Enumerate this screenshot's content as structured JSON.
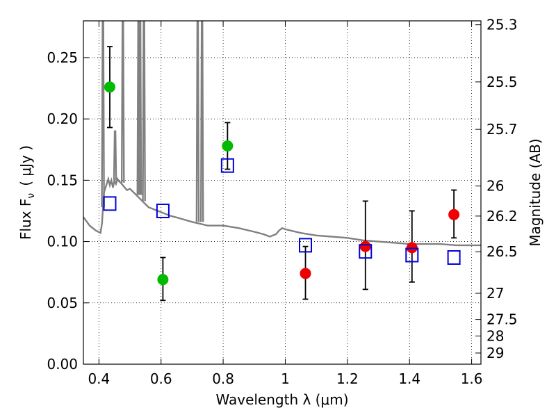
{
  "chart_data": {
    "type": "scatter",
    "xlabel": "Wavelength  λ (μm)",
    "ylabel": "Flux  F",
    "ylabel_subscript": "ν",
    "ylabel_unit": "( μJy )",
    "y2label": "Magnitude (AB)",
    "xlim": [
      0.35,
      1.63
    ],
    "ylim": [
      0.0,
      0.28
    ],
    "grid": true,
    "x_ticks": [
      0.4,
      0.6,
      0.8,
      1.0,
      1.2,
      1.4,
      1.6
    ],
    "x_tick_labels": [
      "0.4",
      "0.6",
      "0.8",
      "1",
      "1.2",
      "1.4",
      "1.6"
    ],
    "y_ticks": [
      0.0,
      0.05,
      0.1,
      0.15,
      0.2,
      0.25
    ],
    "y_tick_labels": [
      "0.00",
      "0.05",
      "0.10",
      "0.15",
      "0.20",
      "0.25"
    ],
    "y2_ticks": [
      {
        "label": "25.3",
        "flux": 0.2768
      },
      {
        "label": "25.5",
        "flux": 0.2302
      },
      {
        "label": "25.7",
        "flux": 0.1915
      },
      {
        "label": "26",
        "flux": 0.1453
      },
      {
        "label": "26.2",
        "flux": 0.1208
      },
      {
        "label": "26.5",
        "flux": 0.0917
      },
      {
        "label": "27",
        "flux": 0.0578
      },
      {
        "label": "27.5",
        "flux": 0.0365
      },
      {
        "label": "28",
        "flux": 0.023
      },
      {
        "label": "29",
        "flux": 0.0091
      }
    ],
    "series": [
      {
        "marker": "circle",
        "color": "#00bb00",
        "points": [
          {
            "x": 0.435,
            "y": 0.226,
            "yerr_low": 0.193,
            "yerr_high": 0.259
          },
          {
            "x": 0.606,
            "y": 0.069,
            "yerr_low": 0.052,
            "yerr_high": 0.087
          },
          {
            "x": 0.814,
            "y": 0.178,
            "yerr_low": 0.159,
            "yerr_high": 0.197
          }
        ]
      },
      {
        "marker": "circle",
        "color": "#ee0000",
        "points": [
          {
            "x": 1.065,
            "y": 0.074,
            "yerr_low": 0.053,
            "yerr_high": 0.096
          },
          {
            "x": 1.258,
            "y": 0.096,
            "yerr_low": 0.061,
            "yerr_high": 0.133
          },
          {
            "x": 1.408,
            "y": 0.095,
            "yerr_low": 0.067,
            "yerr_high": 0.125
          },
          {
            "x": 1.543,
            "y": 0.122,
            "yerr_low": 0.103,
            "yerr_high": 0.142
          }
        ]
      },
      {
        "marker": "open-square",
        "color": "#0000dd",
        "points": [
          {
            "x": 0.435,
            "y": 0.131
          },
          {
            "x": 0.606,
            "y": 0.125
          },
          {
            "x": 0.814,
            "y": 0.162
          },
          {
            "x": 1.065,
            "y": 0.097
          },
          {
            "x": 1.258,
            "y": 0.092
          },
          {
            "x": 1.408,
            "y": 0.089
          },
          {
            "x": 1.543,
            "y": 0.087
          }
        ]
      }
    ],
    "model_spectrum": {
      "color": "#808080",
      "x": [
        0.35,
        0.37,
        0.39,
        0.405,
        0.41,
        0.413,
        0.416,
        0.42,
        0.425,
        0.43,
        0.435,
        0.44,
        0.445,
        0.45,
        0.455,
        0.46,
        0.465,
        0.47,
        0.48,
        0.49,
        0.5,
        0.52,
        0.54,
        0.56,
        0.58,
        0.6,
        0.63,
        0.66,
        0.7,
        0.75,
        0.8,
        0.85,
        0.9,
        0.93,
        0.95,
        0.97,
        0.98,
        0.99,
        1.0,
        1.05,
        1.1,
        1.15,
        1.2,
        1.25,
        1.3,
        1.35,
        1.4,
        1.45,
        1.5,
        1.55,
        1.6,
        1.63
      ],
      "y": [
        0.12,
        0.113,
        0.109,
        0.107,
        0.115,
        0.128,
        0.14,
        0.143,
        0.147,
        0.151,
        0.146,
        0.15,
        0.144,
        0.15,
        0.147,
        0.151,
        0.149,
        0.148,
        0.145,
        0.142,
        0.143,
        0.138,
        0.133,
        0.128,
        0.126,
        0.124,
        0.121,
        0.119,
        0.116,
        0.113,
        0.113,
        0.111,
        0.108,
        0.106,
        0.104,
        0.106,
        0.109,
        0.111,
        0.11,
        0.107,
        0.105,
        0.104,
        0.103,
        0.101,
        0.1,
        0.099,
        0.098,
        0.098,
        0.098,
        0.097,
        0.097,
        0.097
      ],
      "emission_lines": [
        {
          "x": 0.413,
          "peak": 0.28
        },
        {
          "x": 0.477,
          "peak": 0.28
        },
        {
          "x": 0.5275,
          "peak": 0.28
        },
        {
          "x": 0.5325,
          "peak": 0.28
        },
        {
          "x": 0.545,
          "peak": 0.28
        },
        {
          "x": 0.718,
          "peak": 0.28
        },
        {
          "x": 0.732,
          "peak": 0.28
        },
        {
          "x": 0.452,
          "peak": 0.19
        }
      ]
    }
  }
}
